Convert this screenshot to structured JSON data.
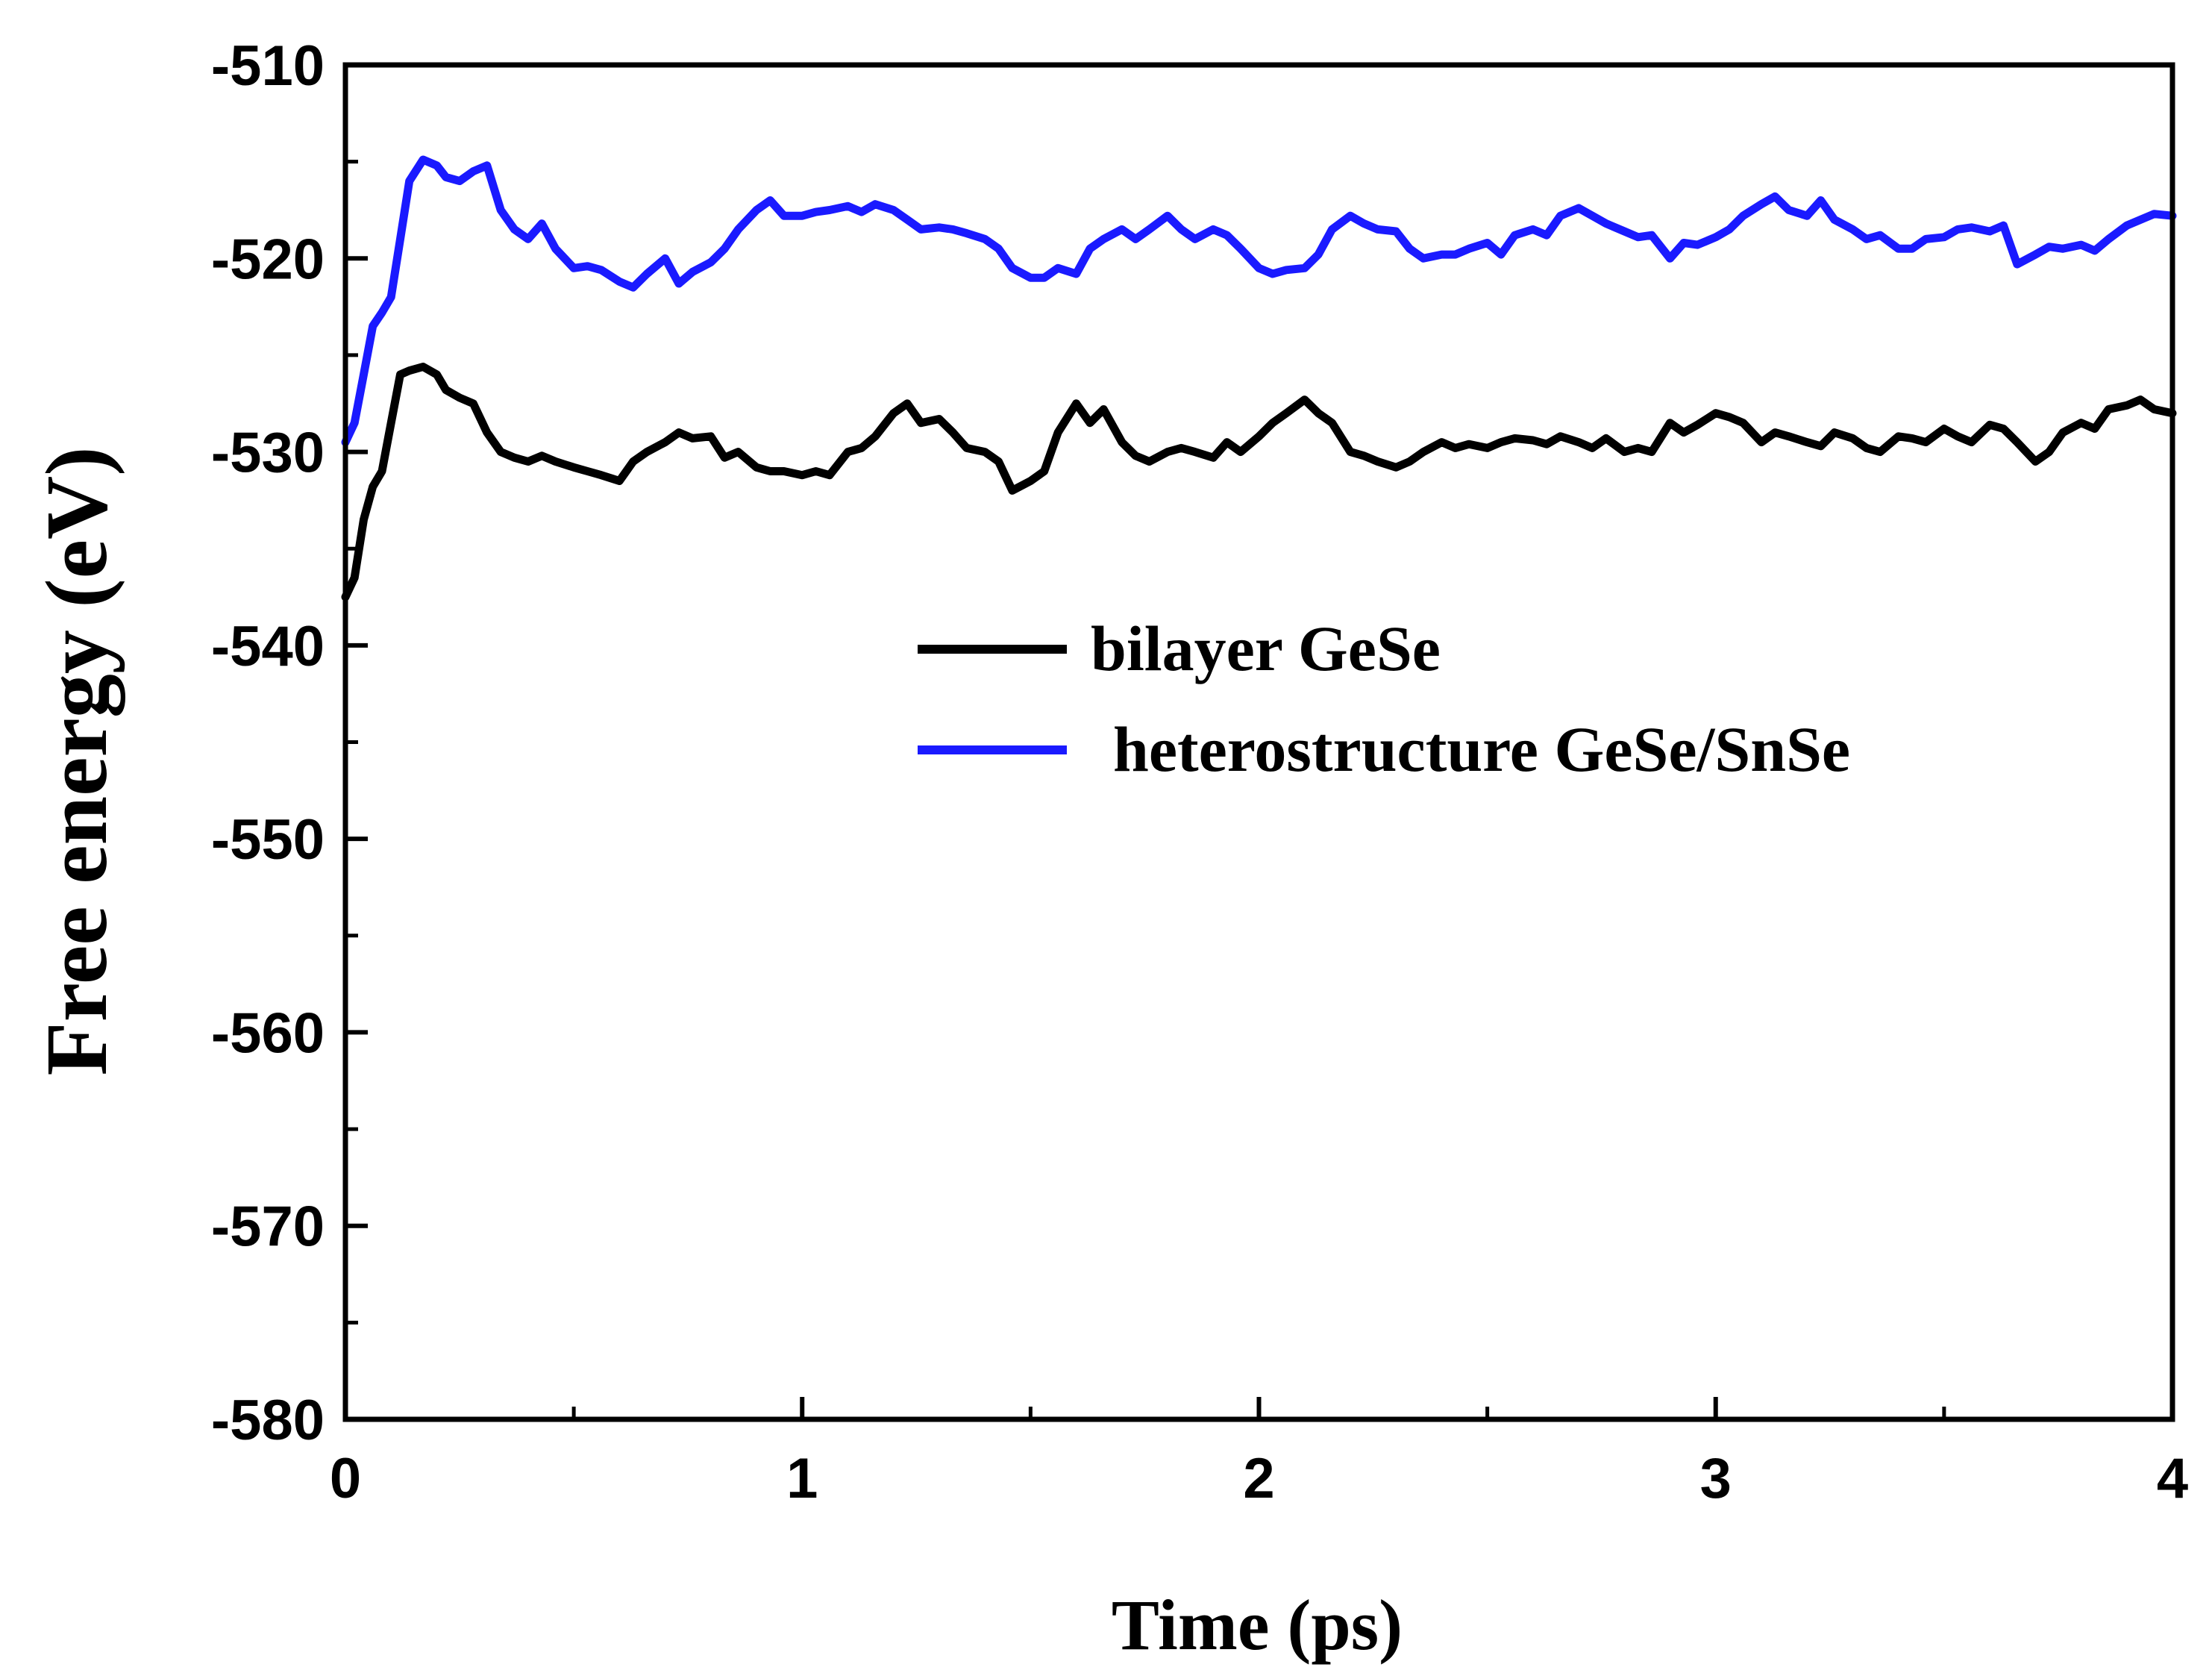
{
  "chart_data": {
    "type": "line",
    "xlabel": "Time (ps)",
    "ylabel": "Free energy (eV)",
    "xlim": [
      0,
      4
    ],
    "ylim": [
      -580,
      -510
    ],
    "xticks": [
      0,
      1,
      2,
      3,
      4
    ],
    "yticks": [
      -510,
      -520,
      -530,
      -540,
      -550,
      -560,
      -570,
      -580
    ],
    "grid": false,
    "legend_position": "center-right",
    "series": [
      {
        "name": "bilayer GeSe",
        "color": "#000000",
        "x": [
          0,
          0.02,
          0.04,
          0.06,
          0.08,
          0.1,
          0.12,
          0.14,
          0.17,
          0.2,
          0.22,
          0.25,
          0.28,
          0.31,
          0.34,
          0.37,
          0.4,
          0.43,
          0.46,
          0.5,
          0.53,
          0.56,
          0.6,
          0.63,
          0.66,
          0.7,
          0.73,
          0.76,
          0.8,
          0.83,
          0.86,
          0.9,
          0.93,
          0.96,
          1.0,
          1.03,
          1.06,
          1.1,
          1.13,
          1.16,
          1.2,
          1.23,
          1.26,
          1.3,
          1.33,
          1.36,
          1.4,
          1.43,
          1.46,
          1.5,
          1.53,
          1.56,
          1.6,
          1.63,
          1.66,
          1.7,
          1.73,
          1.76,
          1.8,
          1.83,
          1.86,
          1.9,
          1.93,
          1.96,
          2.0,
          2.03,
          2.06,
          2.1,
          2.13,
          2.16,
          2.2,
          2.23,
          2.26,
          2.3,
          2.33,
          2.36,
          2.4,
          2.43,
          2.46,
          2.5,
          2.53,
          2.56,
          2.6,
          2.63,
          2.66,
          2.7,
          2.73,
          2.76,
          2.8,
          2.83,
          2.86,
          2.9,
          2.93,
          2.96,
          3.0,
          3.03,
          3.06,
          3.1,
          3.13,
          3.16,
          3.2,
          3.23,
          3.26,
          3.3,
          3.33,
          3.36,
          3.4,
          3.43,
          3.46,
          3.5,
          3.53,
          3.56,
          3.6,
          3.63,
          3.66,
          3.7,
          3.73,
          3.76,
          3.8,
          3.83,
          3.86,
          3.9,
          3.93,
          3.96,
          4.0
        ],
        "y": [
          -537.5,
          -536.5,
          -533.5,
          -531.8,
          -531.0,
          -528.5,
          -526.0,
          -525.8,
          -525.6,
          -526.0,
          -526.8,
          -527.2,
          -527.5,
          -529.0,
          -530.0,
          -530.3,
          -530.5,
          -530.2,
          -530.5,
          -530.8,
          -531.0,
          -531.2,
          -531.5,
          -530.5,
          -530.0,
          -529.5,
          -529.0,
          -529.3,
          -529.2,
          -530.3,
          -530.0,
          -530.8,
          -531.0,
          -531.0,
          -531.2,
          -531.0,
          -531.2,
          -530.0,
          -529.8,
          -529.2,
          -528.0,
          -527.5,
          -528.5,
          -528.3,
          -529.0,
          -529.8,
          -530.0,
          -530.5,
          -532.0,
          -531.5,
          -531.0,
          -529.0,
          -527.5,
          -528.5,
          -527.8,
          -529.5,
          -530.2,
          -530.5,
          -530.0,
          -529.8,
          -530.0,
          -530.3,
          -529.5,
          -530.0,
          -529.2,
          -528.5,
          -528.0,
          -527.3,
          -528.0,
          -528.5,
          -530.0,
          -530.2,
          -530.5,
          -530.8,
          -530.5,
          -530.0,
          -529.5,
          -529.8,
          -529.6,
          -529.8,
          -529.5,
          -529.3,
          -529.4,
          -529.6,
          -529.2,
          -529.5,
          -529.8,
          -529.3,
          -530.0,
          -529.8,
          -530.0,
          -528.5,
          -529.0,
          -528.6,
          -528.0,
          -528.2,
          -528.5,
          -529.5,
          -529.0,
          -529.2,
          -529.5,
          -529.7,
          -529.0,
          -529.3,
          -529.8,
          -530.0,
          -529.2,
          -529.3,
          -529.5,
          -528.8,
          -529.2,
          -529.5,
          -528.6,
          -528.8,
          -529.5,
          -530.5,
          -530.0,
          -529.0,
          -528.5,
          -528.8,
          -527.8,
          -527.6,
          -527.3,
          -527.8,
          -528.0
        ]
      },
      {
        "name": "heterostructure GeSe/SnSe",
        "color": "#1a1aff",
        "x": [
          0,
          0.02,
          0.04,
          0.06,
          0.08,
          0.1,
          0.12,
          0.14,
          0.17,
          0.2,
          0.22,
          0.25,
          0.28,
          0.31,
          0.34,
          0.37,
          0.4,
          0.43,
          0.46,
          0.5,
          0.53,
          0.56,
          0.6,
          0.63,
          0.66,
          0.7,
          0.73,
          0.76,
          0.8,
          0.83,
          0.86,
          0.9,
          0.93,
          0.96,
          1.0,
          1.03,
          1.06,
          1.1,
          1.13,
          1.16,
          1.2,
          1.23,
          1.26,
          1.3,
          1.33,
          1.36,
          1.4,
          1.43,
          1.46,
          1.5,
          1.53,
          1.56,
          1.6,
          1.63,
          1.66,
          1.7,
          1.73,
          1.76,
          1.8,
          1.83,
          1.86,
          1.9,
          1.93,
          1.96,
          2.0,
          2.03,
          2.06,
          2.1,
          2.13,
          2.16,
          2.2,
          2.23,
          2.26,
          2.3,
          2.33,
          2.36,
          2.4,
          2.43,
          2.46,
          2.5,
          2.53,
          2.56,
          2.6,
          2.63,
          2.66,
          2.7,
          2.73,
          2.76,
          2.8,
          2.83,
          2.86,
          2.9,
          2.93,
          2.96,
          3.0,
          3.03,
          3.06,
          3.1,
          3.13,
          3.16,
          3.2,
          3.23,
          3.26,
          3.3,
          3.33,
          3.36,
          3.4,
          3.43,
          3.46,
          3.5,
          3.53,
          3.56,
          3.6,
          3.63,
          3.66,
          3.7,
          3.73,
          3.76,
          3.8,
          3.83,
          3.86,
          3.9,
          3.93,
          3.96,
          4.0
        ],
        "y": [
          -529.5,
          -528.5,
          -526.0,
          -523.5,
          -522.8,
          -522.0,
          -519.0,
          -516.0,
          -514.9,
          -515.2,
          -515.8,
          -516.0,
          -515.5,
          -515.2,
          -517.5,
          -518.5,
          -519.0,
          -518.2,
          -519.5,
          -520.5,
          -520.4,
          -520.6,
          -521.2,
          -521.5,
          -520.8,
          -520.0,
          -521.3,
          -520.7,
          -520.2,
          -519.5,
          -518.5,
          -517.5,
          -517.0,
          -517.8,
          -517.8,
          -517.6,
          -517.5,
          -517.3,
          -517.6,
          -517.2,
          -517.5,
          -518.0,
          -518.5,
          -518.4,
          -518.5,
          -518.7,
          -519.0,
          -519.5,
          -520.5,
          -521.0,
          -521.0,
          -520.5,
          -520.8,
          -519.5,
          -519.0,
          -518.5,
          -519.0,
          -518.5,
          -517.8,
          -518.5,
          -519.0,
          -518.5,
          -518.8,
          -519.5,
          -520.5,
          -520.8,
          -520.6,
          -520.5,
          -519.8,
          -518.5,
          -517.8,
          -518.2,
          -518.5,
          -518.6,
          -519.5,
          -520.0,
          -519.8,
          -519.8,
          -519.5,
          -519.2,
          -519.8,
          -518.8,
          -518.5,
          -518.8,
          -517.8,
          -517.4,
          -517.8,
          -518.2,
          -518.6,
          -518.9,
          -518.8,
          -520.0,
          -519.2,
          -519.3,
          -518.9,
          -518.5,
          -517.8,
          -517.2,
          -516.8,
          -517.5,
          -517.8,
          -517.0,
          -518.0,
          -518.5,
          -519.0,
          -518.8,
          -519.5,
          -519.5,
          -519.0,
          -518.9,
          -518.5,
          -518.4,
          -518.6,
          -518.3,
          -520.3,
          -519.8,
          -519.4,
          -519.5,
          -519.3,
          -519.6,
          -519.0,
          -518.3,
          -518.0,
          -517.7,
          -517.8
        ]
      }
    ]
  }
}
